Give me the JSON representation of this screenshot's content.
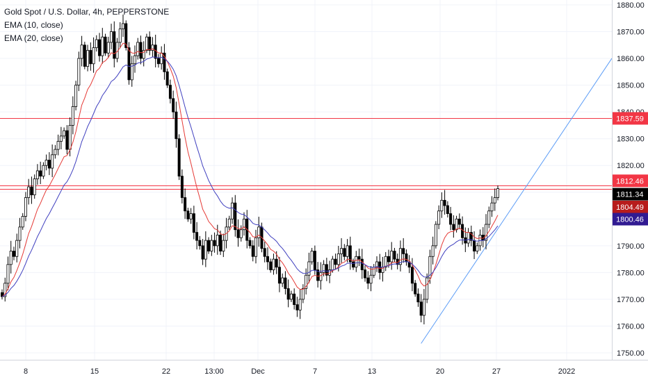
{
  "header": {
    "symbol": "Gold Spot / U.S. Dollar, 4h, PEPPERSTONE",
    "indicators": [
      "EMA (10, close)",
      "EMA (20, close)"
    ]
  },
  "chart_data": {
    "type": "candlestick",
    "y_axis": {
      "ticks": [
        "1880.00",
        "1870.00",
        "1860.00",
        "1850.00",
        "1840.00",
        "1830.00",
        "1820.00",
        "1810.00",
        "1800.00",
        "1790.00",
        "1780.00",
        "1770.00",
        "1760.00",
        "1750.00"
      ],
      "min": 1750,
      "max": 1880
    },
    "x_axis": {
      "ticks": [
        "8",
        "15",
        "22",
        "13:00",
        "Dec",
        "7",
        "13",
        "20",
        "27",
        "2022"
      ]
    },
    "price_labels": [
      {
        "text": "1837.59",
        "value": 1837.59,
        "bg": "#f23645",
        "fg": "#ffffff"
      },
      {
        "text": "1812.46",
        "value": 1812.46,
        "bg": "#f23645",
        "fg": "#ffffff"
      },
      {
        "text": "1811.34",
        "value": 1811.34,
        "bg": "#000000",
        "fg": "#ffffff"
      },
      {
        "text": "1804.49",
        "value": 1804.49,
        "bg": "#b71c1c",
        "fg": "#ffffff"
      },
      {
        "text": "1800.46",
        "value": 1800.46,
        "bg": "#311b92",
        "fg": "#ffffff"
      }
    ],
    "horizontal_lines": [
      {
        "value": 1837.59,
        "color": "#f23645"
      },
      {
        "value": 1812.46,
        "color": "#f23645"
      },
      {
        "value": 1811.34,
        "color": "#f23645"
      }
    ],
    "trendline": {
      "color": "#5b9cf6"
    },
    "ema_colors": {
      "ema10": "#e53935",
      "ema20": "#3f3fbf"
    },
    "candle_color": "#000000",
    "closes": [
      1771,
      1776,
      1783,
      1788,
      1786,
      1792,
      1797,
      1801,
      1808,
      1812,
      1809,
      1815,
      1818,
      1816,
      1820,
      1822,
      1819,
      1824,
      1826,
      1829,
      1831,
      1833,
      1826,
      1835,
      1842,
      1850,
      1860,
      1865,
      1857,
      1863,
      1858,
      1864,
      1867,
      1861,
      1868,
      1862,
      1866,
      1870,
      1860,
      1866,
      1871,
      1873,
      1864,
      1852,
      1858,
      1861,
      1866,
      1860,
      1863,
      1868,
      1863,
      1865,
      1860,
      1858,
      1862,
      1855,
      1850,
      1845,
      1840,
      1830,
      1816,
      1808,
      1803,
      1800,
      1802,
      1795,
      1792,
      1790,
      1785,
      1792,
      1788,
      1792,
      1790,
      1794,
      1788,
      1792,
      1797,
      1800,
      1806,
      1796,
      1793,
      1796,
      1800,
      1792,
      1790,
      1786,
      1793,
      1797,
      1789,
      1786,
      1784,
      1781,
      1785,
      1782,
      1776,
      1778,
      1774,
      1770,
      1772,
      1768,
      1766,
      1770,
      1774,
      1779,
      1784,
      1788,
      1781,
      1777,
      1780,
      1783,
      1779,
      1781,
      1785,
      1783,
      1787,
      1789,
      1786,
      1790,
      1784,
      1782,
      1786,
      1785,
      1781,
      1778,
      1776,
      1779,
      1782,
      1784,
      1780,
      1782,
      1786,
      1784,
      1788,
      1785,
      1783,
      1789,
      1787,
      1784,
      1782,
      1776,
      1772,
      1769,
      1764,
      1770,
      1778,
      1786,
      1790,
      1798,
      1803,
      1807,
      1805,
      1802,
      1798,
      1796,
      1800,
      1798,
      1793,
      1791,
      1795,
      1792,
      1788,
      1790,
      1794,
      1792,
      1798,
      1803,
      1806,
      1808,
      1811.34
    ]
  }
}
